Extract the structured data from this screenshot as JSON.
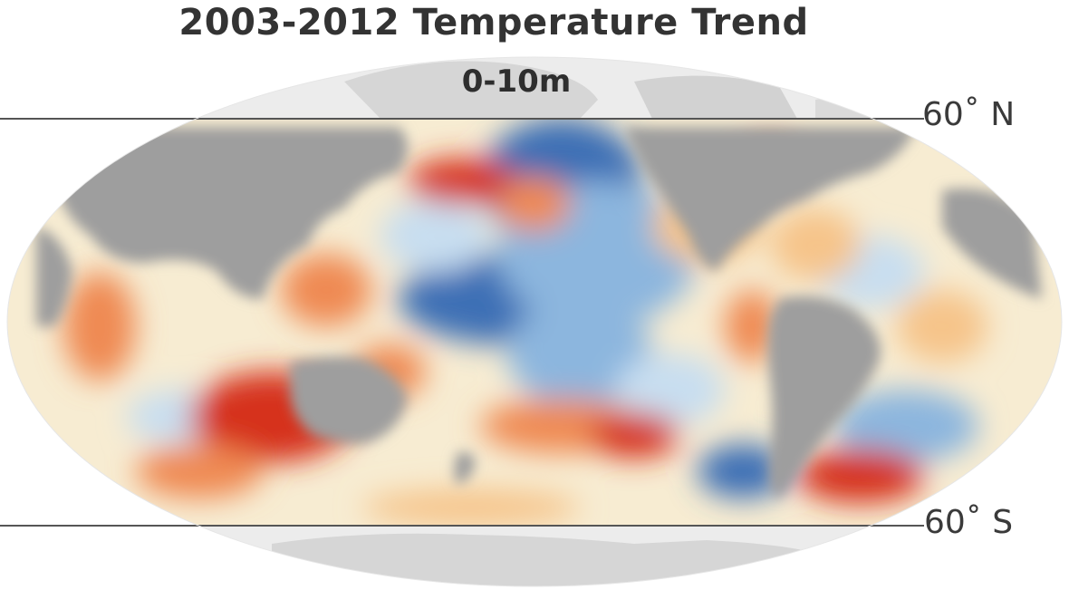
{
  "title": "2003-2012 Temperature Trend",
  "subtitle": "0-10m",
  "latitude_labels": {
    "north": "60˚ N",
    "south": "60˚ S"
  },
  "colors": {
    "land": "#9e9e9e",
    "polar_land": "#d6d6d6",
    "polar_ocean": "#ececec",
    "ocean_neutral": "#f7ecd2",
    "warm_light": "#f6c48a",
    "warm_mid": "#ef8a52",
    "warm_strong": "#d6301f",
    "cool_light": "#c8def0",
    "cool_mid": "#8cb6de",
    "cool_strong": "#3d70b5",
    "lat_line": "#555555"
  }
}
